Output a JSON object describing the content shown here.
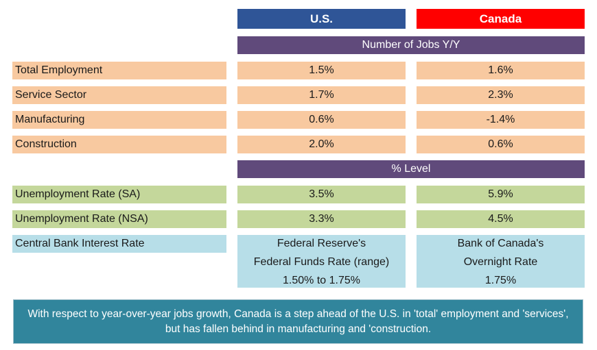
{
  "headers": {
    "us": "U.S.",
    "canada": "Canada"
  },
  "sections": {
    "jobs": "Number of Jobs Y/Y",
    "level": "% Level"
  },
  "rows": [
    {
      "label": "Total Employment",
      "us": "1.5%",
      "canada": "1.6%"
    },
    {
      "label": "Service Sector",
      "us": "1.7%",
      "canada": "2.3%"
    },
    {
      "label": "Manufacturing",
      "us": "0.6%",
      "canada": "-1.4%"
    },
    {
      "label": "Construction",
      "us": "2.0%",
      "canada": "0.6%"
    },
    {
      "label": "Unemployment Rate (SA)",
      "us": "3.5%",
      "canada": "5.9%"
    },
    {
      "label": "Unemployment Rate (NSA)",
      "us": "3.3%",
      "canada": "4.5%"
    }
  ],
  "central_bank": {
    "label": "Central Bank Interest Rate",
    "us": [
      "Federal Reserve's",
      "Federal Funds Rate (range)",
      "1.50% to 1.75%"
    ],
    "canada": [
      "Bank of Canada's",
      "Overnight Rate",
      "1.75%"
    ]
  },
  "footer": "With respect to year-over-year jobs growth, Canada is a step ahead of  the U.S. in 'total' employment and 'services', but has fallen  behind in manufacturing and 'construction.",
  "colors": {
    "us_header": "#2f5597",
    "canada_header": "#ff0000",
    "section_band": "#604a7b",
    "jobs_rows": "#f8c9a0",
    "rate_rows": "#c4d79b",
    "central_bank_rows": "#b7dee8",
    "footer": "#31859c"
  }
}
